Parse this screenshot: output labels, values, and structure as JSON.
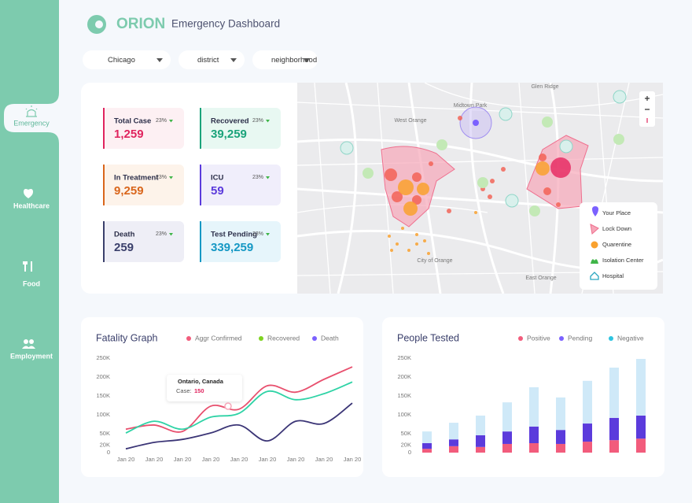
{
  "header": {
    "brand": "ORION",
    "title": "Emergency Dashboard"
  },
  "filters": [
    "Chicago",
    "district",
    "neighborhood"
  ],
  "nav": [
    "Emergency",
    "Healthcare",
    "Food",
    "Employment"
  ],
  "stats": [
    {
      "title": "Total Case",
      "change": "23%",
      "value": "1,259",
      "color": "#e0245e",
      "bg": "#fdf0f3"
    },
    {
      "title": "Recovered",
      "change": "23%",
      "value": "39,259",
      "color": "#1aa37a",
      "bg": "#e8f8f2"
    },
    {
      "title": "In Treatment",
      "change": "23%",
      "value": "9,259",
      "color": "#d9661c",
      "bg": "#fdf3ea"
    },
    {
      "title": "ICU",
      "change": "23%",
      "value": "59",
      "color": "#5b3bdc",
      "bg": "#f0eefb"
    },
    {
      "title": "Death",
      "change": "23%",
      "value": "259",
      "color": "#3a3f6b",
      "bg": "#eeeef6"
    },
    {
      "title": "Test Pending",
      "change": "23%",
      "value": "339,259",
      "color": "#1598c4",
      "bg": "#e6f5fb"
    }
  ],
  "map": {
    "places": [
      "Glen Ridge",
      "Midtown Park",
      "West Orange",
      "City of Orange",
      "East Orange"
    ],
    "legend": [
      "Your Place",
      "Lock Down",
      "Quarentine",
      "Isolation Center",
      "Hospital"
    ]
  },
  "chart_data": [
    {
      "type": "line",
      "title": "Fatality Graph",
      "categories": [
        "Jan 20",
        "Jan 20",
        "Jan 20",
        "Jan 20",
        "Jan 20",
        "Jan 20",
        "Jan 20",
        "Jan 20",
        "Jan 20"
      ],
      "series": [
        {
          "name": "Aggr Confirmed",
          "color": "#e8506e",
          "values": [
            62000,
            73000,
            56000,
            123000,
            115000,
            177000,
            160000,
            194000,
            227000
          ]
        },
        {
          "name": "Recovered",
          "color": "#2fd3a6",
          "values": [
            52000,
            83000,
            62000,
            94000,
            104000,
            162000,
            140000,
            156000,
            187000
          ]
        },
        {
          "name": "Death",
          "color": "#3b3576",
          "values": [
            10000,
            27000,
            35000,
            52000,
            73000,
            31000,
            83000,
            77000,
            131000
          ]
        }
      ],
      "legend_colors": [
        "#f25c7c",
        "#7ed321",
        "#7b61ff"
      ],
      "ylim": [
        0,
        250000
      ],
      "yticks": [
        0,
        {
          "value": 20000,
          "label": "20K"
        },
        {
          "value": 50000,
          "label": "50K"
        },
        {
          "value": 100000,
          "label": "100K"
        },
        {
          "value": 150000,
          "label": "150K"
        },
        {
          "value": 200000,
          "label": "200K"
        },
        {
          "value": 250000,
          "label": "250K"
        }
      ],
      "grid": false,
      "annotation": {
        "title": "Ontario, Canada",
        "label": "Case:",
        "value": 150
      }
    },
    {
      "type": "bar",
      "stacked": true,
      "title": "People Tested",
      "categories": [
        null,
        null,
        null,
        null,
        null,
        null,
        null,
        null,
        null
      ],
      "series": [
        {
          "name": "Positive",
          "color": "#f25c7c",
          "values": [
            10000,
            17000,
            15000,
            23000,
            25000,
            23000,
            29000,
            33000,
            37000
          ]
        },
        {
          "name": "Pending",
          "color": "#5b3bdc",
          "values": [
            15000,
            18000,
            31000,
            33000,
            44000,
            37000,
            48000,
            59000,
            61000
          ]
        },
        {
          "name": "Negative",
          "color": "#cfe9f8",
          "values": [
            31000,
            44000,
            52000,
            77000,
            104000,
            86000,
            113000,
            133000,
            150000
          ]
        }
      ],
      "legend_colors": [
        "#f25c7c",
        "#7b61ff",
        "#2ec4e0"
      ],
      "ylim": [
        0,
        250000
      ],
      "yticks": [
        0,
        {
          "value": 20000,
          "label": "20K"
        },
        {
          "value": 50000,
          "label": "50K"
        },
        {
          "value": 100000,
          "label": "100K"
        },
        {
          "value": 150000,
          "label": "150K"
        },
        {
          "value": 200000,
          "label": "200K"
        },
        {
          "value": 250000,
          "label": "250K"
        }
      ],
      "grid": false
    }
  ]
}
